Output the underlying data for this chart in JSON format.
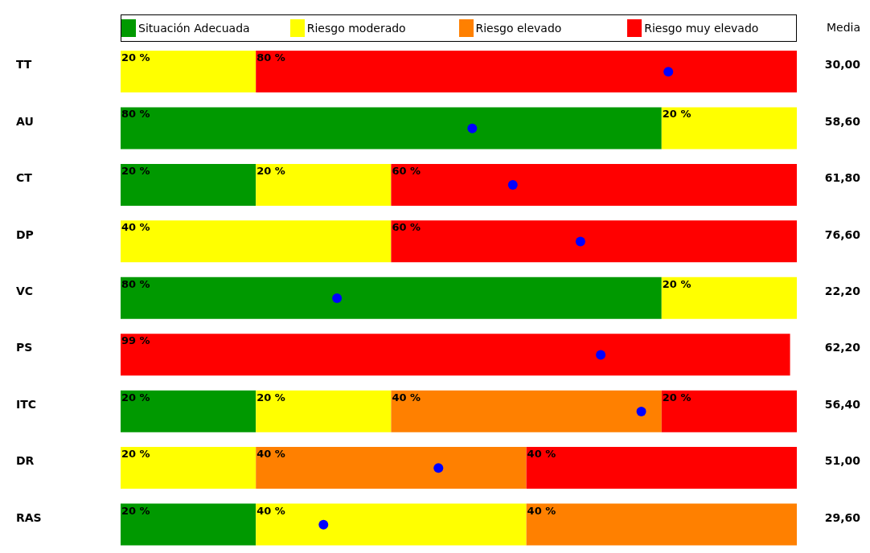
{
  "chart_data": {
    "type": "bar",
    "orientation": "horizontal",
    "stacked": true,
    "legend": "top",
    "tick_labels": "y",
    "categories": [
      "TT",
      "AU",
      "CT",
      "DP",
      "VC",
      "PS",
      "ITC",
      "DR",
      "RAS"
    ],
    "xlim": [
      0,
      100
    ],
    "series": [
      {
        "name": "Situación Adecuada",
        "color": "#009900",
        "values": [
          0,
          80,
          20,
          0,
          80,
          0,
          20,
          0,
          20
        ],
        "value_labels": [
          null,
          "80 %",
          "20 %",
          null,
          "80 %",
          null,
          "20 %",
          null,
          "20 %"
        ]
      },
      {
        "name": "Riesgo moderado",
        "color": "#ffff00",
        "values": [
          20,
          20,
          20,
          40,
          20,
          0,
          20,
          20,
          40
        ],
        "value_labels": [
          "20 %",
          "20 %",
          "20 %",
          "40 %",
          "20 %",
          null,
          "20 %",
          "20 %",
          "40 %"
        ]
      },
      {
        "name": "Riesgo elevado",
        "color": "#ff8000",
        "values": [
          0,
          0,
          0,
          0,
          0,
          0,
          40,
          40,
          40
        ],
        "value_labels": [
          null,
          null,
          null,
          null,
          null,
          null,
          "40 %",
          "40 %",
          "40 %"
        ]
      },
      {
        "name": "Riesgo muy elevado",
        "color": "#ff0000",
        "values": [
          80,
          0,
          60,
          60,
          0,
          99,
          20,
          40,
          0
        ],
        "value_labels": [
          "80 %",
          null,
          "60 %",
          "60 %",
          null,
          "99 %",
          "20 %",
          "40 %",
          null
        ]
      },
      {
        "type": "scatter",
        "color": "#0000ff",
        "marker": "circle",
        "values": [
          81,
          52,
          58,
          68,
          32,
          71,
          77,
          47,
          30
        ]
      }
    ],
    "annotations": [
      "Media",
      "30,00",
      "58,60",
      "61,80",
      "76,60",
      "22,20",
      "62,20",
      "56,40",
      "51,00",
      "29,60"
    ]
  }
}
